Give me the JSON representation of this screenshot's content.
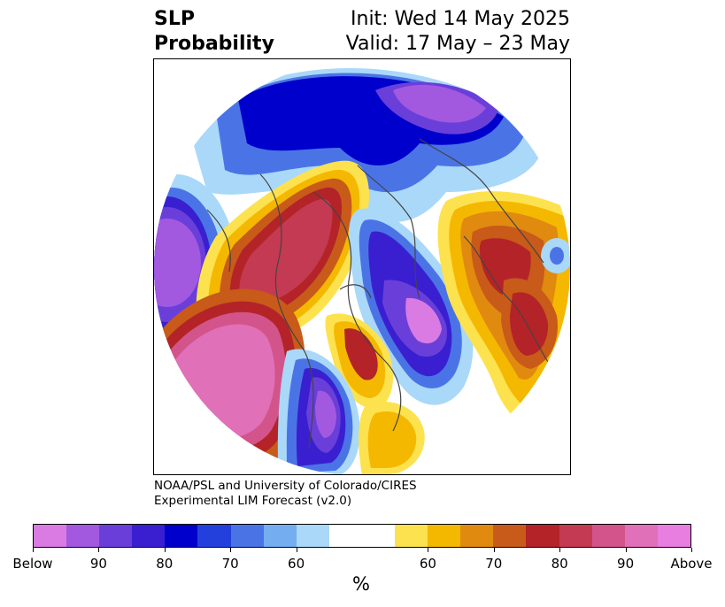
{
  "title": {
    "left_line1": "SLP",
    "left_line2": "Probability",
    "right_line1": "Init: Wed 14 May 2025",
    "right_line2": "Valid: 17 May – 23 May"
  },
  "credit": {
    "line1": "NOAA/PSL and University of Colorado/CIRES",
    "line2": "Experimental LIM Forecast (v2.0)"
  },
  "colorbar": {
    "colors": [
      "#d97be3",
      "#a259e0",
      "#6a3fd9",
      "#3a1fd0",
      "#0000cc",
      "#2340dc",
      "#4a74e6",
      "#74aef0",
      "#aad8f8",
      "#ffffff",
      "#ffffff",
      "#fde24f",
      "#f5b800",
      "#e08a10",
      "#c85a1a",
      "#b42328",
      "#c43a52",
      "#d2548a",
      "#e070b8",
      "#e87ee0"
    ],
    "tick_labels": [
      "Below",
      "90",
      "80",
      "70",
      "60",
      "60",
      "70",
      "80",
      "90",
      "Above"
    ],
    "units": "%"
  },
  "map": {
    "projection": "north-polar-stereographic",
    "regions": [
      {
        "name": "eastern-pacific-below-center",
        "category": "below"
      },
      {
        "name": "north-america-above-ridge",
        "category": "above"
      },
      {
        "name": "north-atlantic-below-trough",
        "category": "below"
      },
      {
        "name": "europe-above-ridge",
        "category": "above"
      },
      {
        "name": "western-pacific-above-ridge",
        "category": "above"
      },
      {
        "name": "siberia-below-trough",
        "category": "below"
      },
      {
        "name": "southwest-us-below-low",
        "category": "below"
      }
    ]
  }
}
